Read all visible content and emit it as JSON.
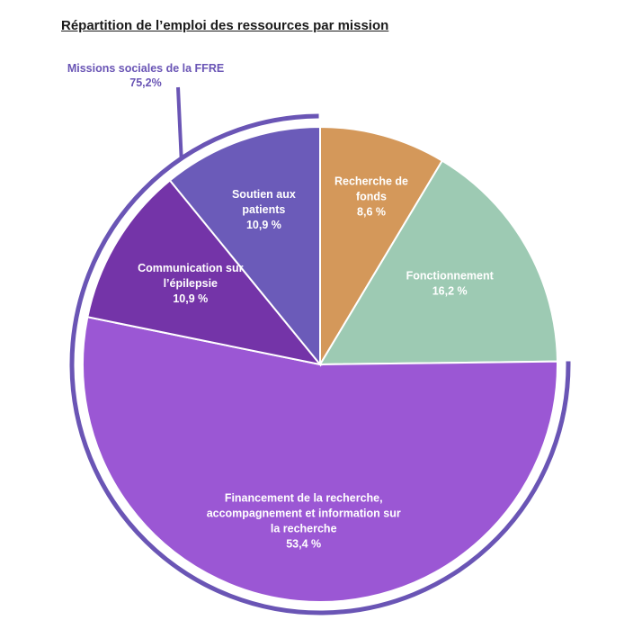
{
  "chart_data": {
    "type": "pie",
    "title": "Répartition de l’emploi des ressources par mission",
    "slices": [
      {
        "label_lines": [
          "Recherche de",
          "fonds"
        ],
        "value_text": "8,6 %",
        "value": 8.6,
        "color": "#d4985a"
      },
      {
        "label_lines": [
          "Fonctionnement"
        ],
        "value_text": "16,2 %",
        "value": 16.2,
        "color": "#9dcab3"
      },
      {
        "label_lines": [
          "Financement de la recherche,",
          "accompagnement et information sur",
          "la recherche"
        ],
        "value_text": "53,4 %",
        "value": 53.4,
        "color": "#9b57d4"
      },
      {
        "label_lines": [
          "Communication sur",
          "l’épilepsie"
        ],
        "value_text": "10,9 %",
        "value": 10.9,
        "color": "#7434a8"
      },
      {
        "label_lines": [
          "Soutien aux",
          "patients"
        ],
        "value_text": "10,9 %",
        "value": 10.9,
        "color": "#6b5bb9"
      }
    ],
    "group_annotation": {
      "label": "Missions sociales de la FFRE",
      "value_text": "75,2%",
      "value": 75.2,
      "color": "#6a55b5"
    }
  }
}
